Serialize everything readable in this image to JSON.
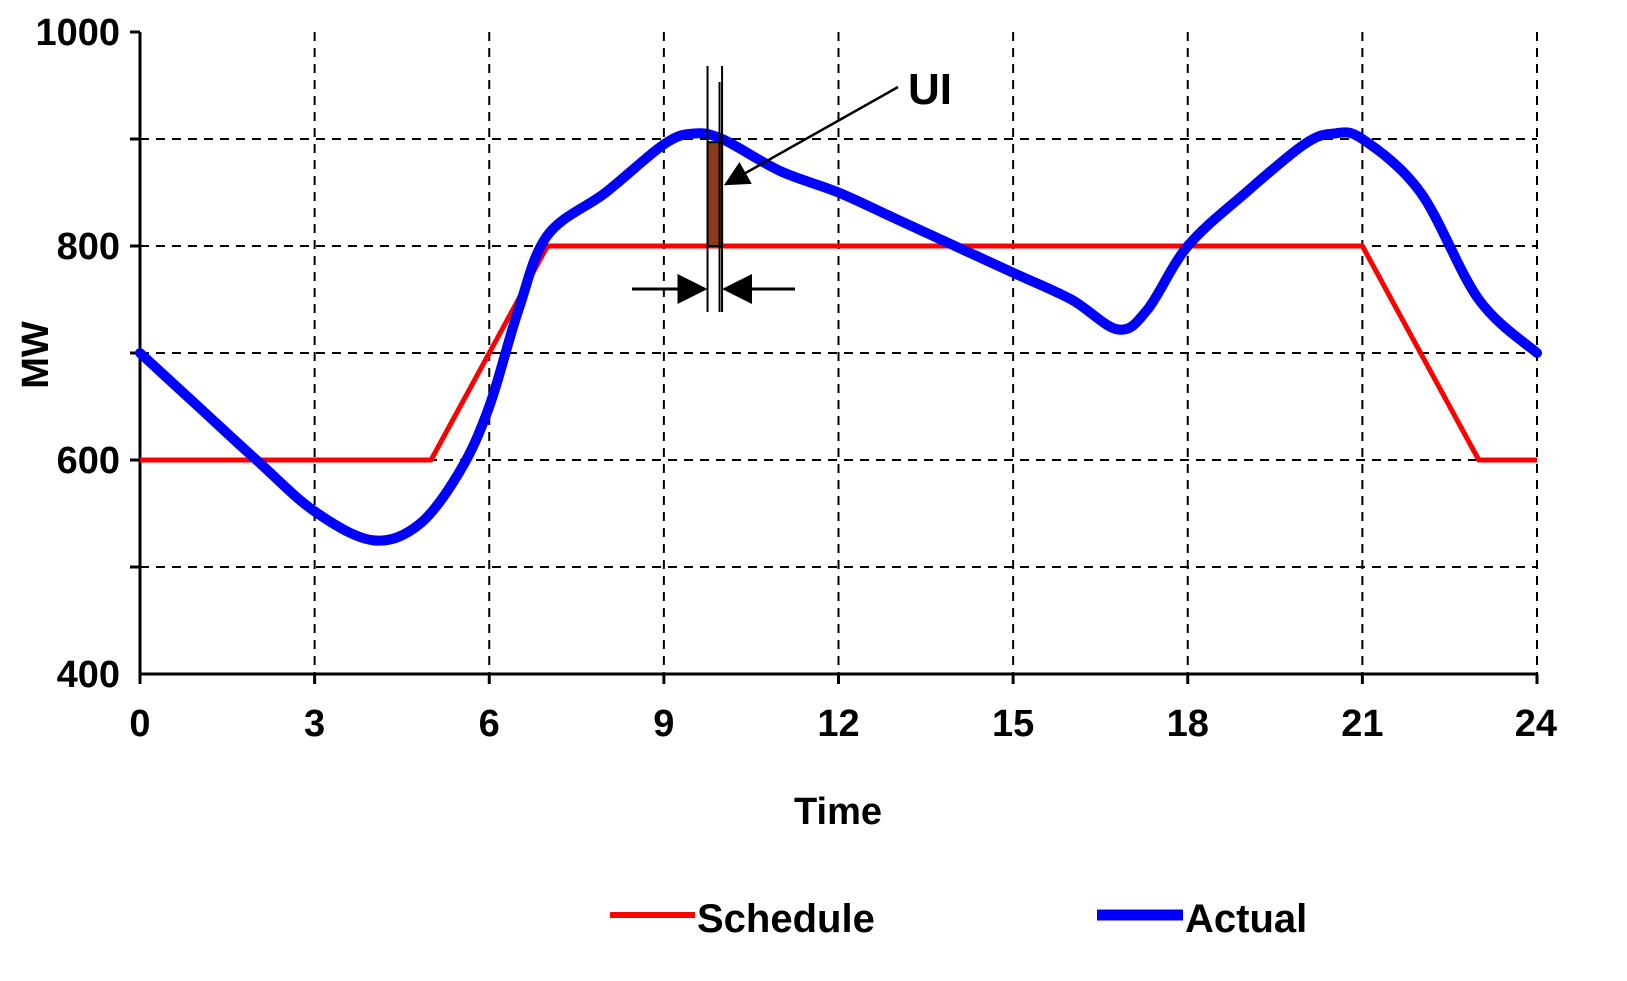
{
  "chart_data": {
    "type": "line",
    "title": "",
    "xlabel": "Time",
    "ylabel": "MW",
    "xlim": [
      0,
      24
    ],
    "ylim": [
      400,
      1000
    ],
    "x_ticks": [
      0,
      3,
      6,
      9,
      12,
      15,
      18,
      21,
      24
    ],
    "y_ticks": [
      400,
      600,
      800,
      1000
    ],
    "y_tick_labels": [
      "400",
      "600",
      "800",
      "1000"
    ],
    "x_tick_labels": [
      "0",
      "3",
      "6",
      "9",
      "12",
      "15",
      "18",
      "21",
      "24"
    ],
    "y_gridlines": [
      500,
      600,
      700,
      800,
      900
    ],
    "grid": "dashed",
    "legend_position": "bottom",
    "series": [
      {
        "name": "Schedule",
        "color": "#ff0000",
        "points": [
          [
            0,
            600
          ],
          [
            5,
            600
          ],
          [
            7,
            800
          ],
          [
            21,
            800
          ],
          [
            23,
            600
          ],
          [
            24,
            600
          ]
        ]
      },
      {
        "name": "Actual",
        "color": "#0000ff",
        "points": [
          [
            0,
            700
          ],
          [
            1,
            650
          ],
          [
            2,
            600
          ],
          [
            3,
            552
          ],
          [
            4,
            525
          ],
          [
            4.8,
            540
          ],
          [
            5.5,
            590
          ],
          [
            6,
            650
          ],
          [
            6.5,
            740
          ],
          [
            7,
            810
          ],
          [
            8,
            850
          ],
          [
            9,
            895
          ],
          [
            9.5,
            905
          ],
          [
            10,
            900
          ],
          [
            11,
            870
          ],
          [
            12,
            850
          ],
          [
            13,
            825
          ],
          [
            14,
            800
          ],
          [
            15,
            775
          ],
          [
            16,
            750
          ],
          [
            16.8,
            722
          ],
          [
            17.3,
            740
          ],
          [
            18,
            800
          ],
          [
            19,
            850
          ],
          [
            20,
            895
          ],
          [
            20.5,
            905
          ],
          [
            21,
            900
          ],
          [
            22,
            850
          ],
          [
            23,
            750
          ],
          [
            24,
            700
          ]
        ]
      }
    ],
    "annotation": {
      "label": "UI",
      "bar_x_start": 9.75,
      "bar_x_end": 10.0,
      "bar_y_low": 800,
      "bar_y_high": 897,
      "bar_color": "#8b3a1a"
    }
  }
}
